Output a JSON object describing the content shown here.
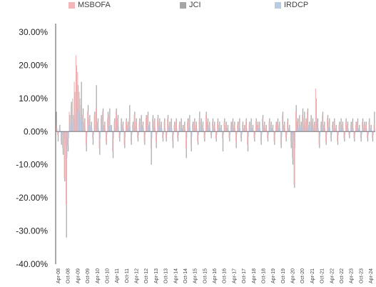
{
  "chart_data": {
    "type": "bar",
    "legend_position": "top",
    "grid": false,
    "ylim": [
      -0.4,
      0.3
    ],
    "y_ticks": [
      "30.00%",
      "20.00%",
      "10.00%",
      "0.00%",
      "-10.00%",
      "-20.00%",
      "-30.00%",
      "-40.00%"
    ],
    "y_tick_values": [
      0.3,
      0.2,
      0.1,
      0.0,
      -0.1,
      -0.2,
      -0.3,
      -0.4
    ],
    "x_tick_labels": [
      "Apr-08",
      "Oct-08",
      "Apr-09",
      "Oct-09",
      "Apr-10",
      "Oct-10",
      "Apr-11",
      "Oct-11",
      "Apr-12",
      "Oct-12",
      "Apr-13",
      "Oct-13",
      "Apr-14",
      "Oct-14",
      "Apr-15",
      "Oct-15",
      "Apr-16",
      "Oct-16",
      "Apr-17",
      "Oct-17",
      "Apr-18",
      "Oct-18",
      "Apr-19",
      "Oct-19",
      "Apr-20",
      "Oct-20",
      "Apr-21",
      "Oct-21",
      "Apr-22",
      "Oct-22",
      "Apr-23",
      "Oct-23",
      "Apr-24"
    ],
    "series": [
      {
        "name": "MSBOFA",
        "color": "#f4b6b8",
        "values": [
          0.02,
          -0.01,
          0.01,
          -0.03,
          -0.05,
          -0.14,
          -0.22,
          -0.04,
          0.06,
          0.08,
          0.1,
          0.15,
          0.23,
          0.18,
          0.12,
          0.08,
          0.05,
          0.03,
          -0.04,
          0.06,
          0.04,
          0.02,
          -0.02,
          0.05,
          0.07,
          0.03,
          -0.05,
          0.04,
          0.06,
          0.02,
          -0.03,
          0.04,
          0.05,
          0.01,
          -0.06,
          0.03,
          0.06,
          0.04,
          -0.02,
          0.03,
          0.02,
          -0.04,
          0.03,
          0.02,
          0.04,
          -0.03,
          0.02,
          0.05,
          0.03,
          -0.02,
          0.03,
          0.04,
          0.02,
          -0.03,
          0.04,
          0.05,
          0.02,
          -0.05,
          0.04,
          0.03,
          -0.03,
          0.04,
          0.03,
          0.02,
          -0.02,
          0.03,
          -0.02,
          0.04,
          0.02,
          0.03,
          -0.03,
          0.02,
          0.03,
          -0.02,
          0.02,
          0.03,
          0.01,
          0.02,
          -0.05,
          0.03,
          0.04,
          -0.04,
          0.02,
          0.03,
          0.02,
          -0.03,
          0.04,
          0.03,
          0.02,
          -0.02,
          0.05,
          0.03,
          0.02,
          -0.01,
          0.03,
          0.02,
          -0.02,
          0.03,
          0.02,
          0.01,
          -0.02,
          0.03,
          0.02,
          0.01,
          -0.02,
          0.02,
          0.03,
          0.02,
          -0.03,
          0.02,
          0.03,
          -0.02,
          0.02,
          0.01,
          0.03,
          -0.04,
          0.02,
          0.03,
          0.01,
          -0.02,
          0.03,
          0.02,
          0.02,
          -0.03,
          0.04,
          0.02,
          0.01,
          -0.02,
          0.03,
          0.02,
          0.01,
          -0.03,
          0.02,
          0.03,
          0.02,
          -0.04,
          0.05,
          0.02,
          -0.02,
          0.03,
          0.01,
          -0.03,
          -0.08,
          -0.16,
          0.06,
          0.03,
          0.04,
          0.02,
          0.05,
          0.04,
          0.03,
          0.06,
          0.02,
          0.04,
          0.03,
          0.02,
          0.13,
          0.03,
          -0.04,
          0.02,
          0.05,
          0.02,
          -0.03,
          0.04,
          0.03,
          -0.02,
          0.02,
          0.03,
          0.01,
          -0.03,
          0.02,
          0.03,
          0.02,
          -0.02,
          0.03,
          0.02,
          -0.01,
          0.02,
          0.03,
          -0.02,
          0.02,
          0.03,
          0.01,
          -0.02,
          0.03,
          0.02,
          0.02,
          -0.02,
          0.03,
          0.01,
          -0.02,
          0.02
        ]
      },
      {
        "name": "JCI",
        "color": "#a6a6a6",
        "values": [
          0.06,
          -0.03,
          0.02,
          -0.04,
          -0.07,
          -0.15,
          -0.32,
          -0.06,
          0.05,
          0.09,
          0.05,
          0.12,
          0.2,
          0.14,
          0.1,
          0.15,
          0.07,
          0.04,
          -0.06,
          0.08,
          0.05,
          0.03,
          -0.04,
          0.06,
          0.14,
          0.04,
          -0.07,
          0.05,
          0.07,
          0.03,
          -0.04,
          0.06,
          0.07,
          0.02,
          -0.08,
          0.04,
          0.07,
          0.05,
          -0.03,
          0.04,
          0.03,
          -0.05,
          0.04,
          0.03,
          0.08,
          -0.04,
          0.03,
          0.06,
          0.04,
          -0.03,
          0.04,
          0.05,
          0.03,
          -0.04,
          0.05,
          0.06,
          0.03,
          -0.1,
          0.05,
          0.04,
          -0.05,
          0.05,
          0.04,
          0.03,
          -0.03,
          0.04,
          -0.03,
          0.05,
          0.03,
          0.04,
          -0.05,
          0.03,
          0.04,
          -0.03,
          0.03,
          0.04,
          0.02,
          0.03,
          -0.08,
          0.04,
          0.05,
          -0.06,
          0.03,
          0.04,
          0.03,
          -0.04,
          0.06,
          0.04,
          0.03,
          -0.03,
          0.06,
          0.04,
          0.03,
          -0.02,
          0.04,
          0.03,
          -0.03,
          0.04,
          0.03,
          0.02,
          -0.06,
          0.04,
          0.03,
          0.02,
          -0.03,
          0.03,
          0.04,
          0.03,
          -0.05,
          0.03,
          0.04,
          -0.03,
          0.03,
          0.02,
          0.04,
          -0.06,
          0.03,
          0.04,
          0.02,
          -0.03,
          0.04,
          0.03,
          0.03,
          -0.04,
          0.05,
          0.03,
          0.02,
          -0.03,
          0.04,
          0.03,
          0.02,
          -0.04,
          0.03,
          0.04,
          0.03,
          -0.05,
          0.06,
          0.03,
          -0.03,
          0.04,
          0.02,
          -0.05,
          -0.1,
          -0.17,
          0.08,
          0.04,
          0.05,
          0.03,
          0.07,
          0.06,
          0.04,
          0.07,
          0.03,
          0.05,
          0.04,
          0.03,
          0.1,
          0.04,
          -0.05,
          0.03,
          0.06,
          0.03,
          -0.04,
          0.05,
          0.04,
          -0.03,
          0.03,
          0.04,
          0.02,
          -0.04,
          0.03,
          0.04,
          0.03,
          -0.03,
          0.04,
          0.03,
          -0.02,
          0.03,
          0.04,
          -0.03,
          0.03,
          0.04,
          0.02,
          -0.03,
          0.04,
          0.03,
          0.03,
          -0.03,
          0.04,
          0.02,
          -0.03,
          0.06
        ]
      },
      {
        "name": "IRDCP",
        "color": "#b8cce4",
        "values": [
          0.01,
          -0.005,
          0.005,
          -0.01,
          -0.02,
          -0.04,
          -0.08,
          -0.02,
          0.02,
          0.03,
          0.04,
          0.05,
          0.07,
          0.06,
          0.04,
          0.03,
          0.02,
          0.01,
          -0.015,
          0.02,
          0.015,
          0.01,
          -0.01,
          0.02,
          0.025,
          0.01,
          -0.02,
          0.015,
          0.02,
          0.01,
          -0.01,
          0.015,
          0.02,
          0.005,
          -0.02,
          0.01,
          0.02,
          0.015,
          -0.01,
          0.01,
          0.01,
          -0.015,
          0.01,
          0.01,
          0.015,
          -0.01,
          0.01,
          0.02,
          0.01,
          -0.01,
          0.01,
          0.015,
          0.01,
          -0.01,
          0.015,
          0.02,
          0.01,
          -0.02,
          0.015,
          0.01,
          -0.01,
          0.015,
          0.01,
          0.01,
          -0.01,
          0.01,
          -0.01,
          0.015,
          0.01,
          0.01,
          -0.01,
          0.01,
          0.01,
          -0.01,
          0.01,
          0.01,
          0.005,
          0.01,
          -0.02,
          0.01,
          0.015,
          -0.015,
          0.01,
          0.01,
          0.01,
          -0.01,
          0.015,
          0.01,
          0.01,
          -0.01,
          0.02,
          0.01,
          0.01,
          -0.005,
          0.01,
          0.01,
          -0.01,
          0.01,
          0.01,
          0.005,
          -0.01,
          0.01,
          0.01,
          0.005,
          -0.01,
          0.01,
          0.01,
          0.01,
          -0.01,
          0.01,
          0.01,
          -0.01,
          0.01,
          0.005,
          0.01,
          -0.015,
          0.01,
          0.01,
          0.005,
          -0.01,
          0.01,
          0.01,
          0.01,
          -0.01,
          0.015,
          0.01,
          0.005,
          -0.01,
          0.01,
          0.01,
          0.005,
          -0.01,
          0.01,
          0.01,
          0.01,
          -0.015,
          0.02,
          0.01,
          -0.01,
          0.01,
          0.005,
          -0.01,
          -0.03,
          -0.05,
          0.02,
          0.01,
          0.015,
          0.01,
          0.02,
          0.015,
          0.01,
          0.02,
          0.01,
          0.015,
          0.01,
          0.01,
          0.04,
          0.01,
          -0.015,
          0.01,
          0.02,
          0.01,
          -0.01,
          0.015,
          0.01,
          -0.01,
          0.01,
          0.01,
          0.005,
          -0.01,
          0.01,
          0.01,
          0.01,
          -0.01,
          0.01,
          0.01,
          -0.005,
          0.01,
          0.01,
          -0.01,
          0.01,
          0.01,
          0.005,
          -0.01,
          0.01,
          0.01,
          0.01,
          -0.01,
          0.01,
          0.005,
          -0.01,
          0.01
        ]
      }
    ]
  }
}
